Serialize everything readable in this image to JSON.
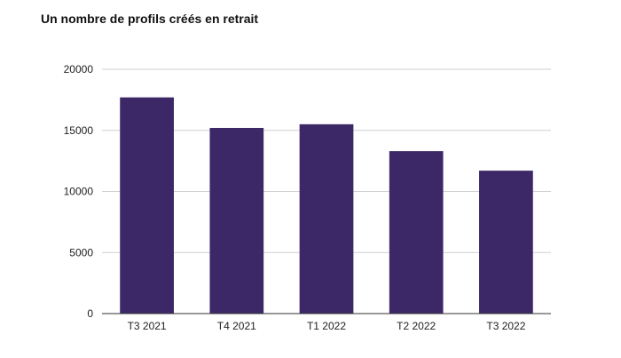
{
  "chart_data": {
    "type": "bar",
    "title": "Un nombre de profils créés en retrait",
    "xlabel": "",
    "ylabel": "",
    "categories": [
      "T3 2021",
      "T4 2021",
      "T1 2022",
      "T2 2022",
      "T3 2022"
    ],
    "values": [
      17700,
      15200,
      15500,
      13300,
      11700
    ],
    "ylim": [
      0,
      20000
    ],
    "yticks": [
      0,
      5000,
      10000,
      15000,
      20000
    ],
    "grid": true,
    "legend": "none",
    "colors": {
      "bar": "#3d2867",
      "grid": "#cfcfcf",
      "axis": "#333333"
    }
  }
}
